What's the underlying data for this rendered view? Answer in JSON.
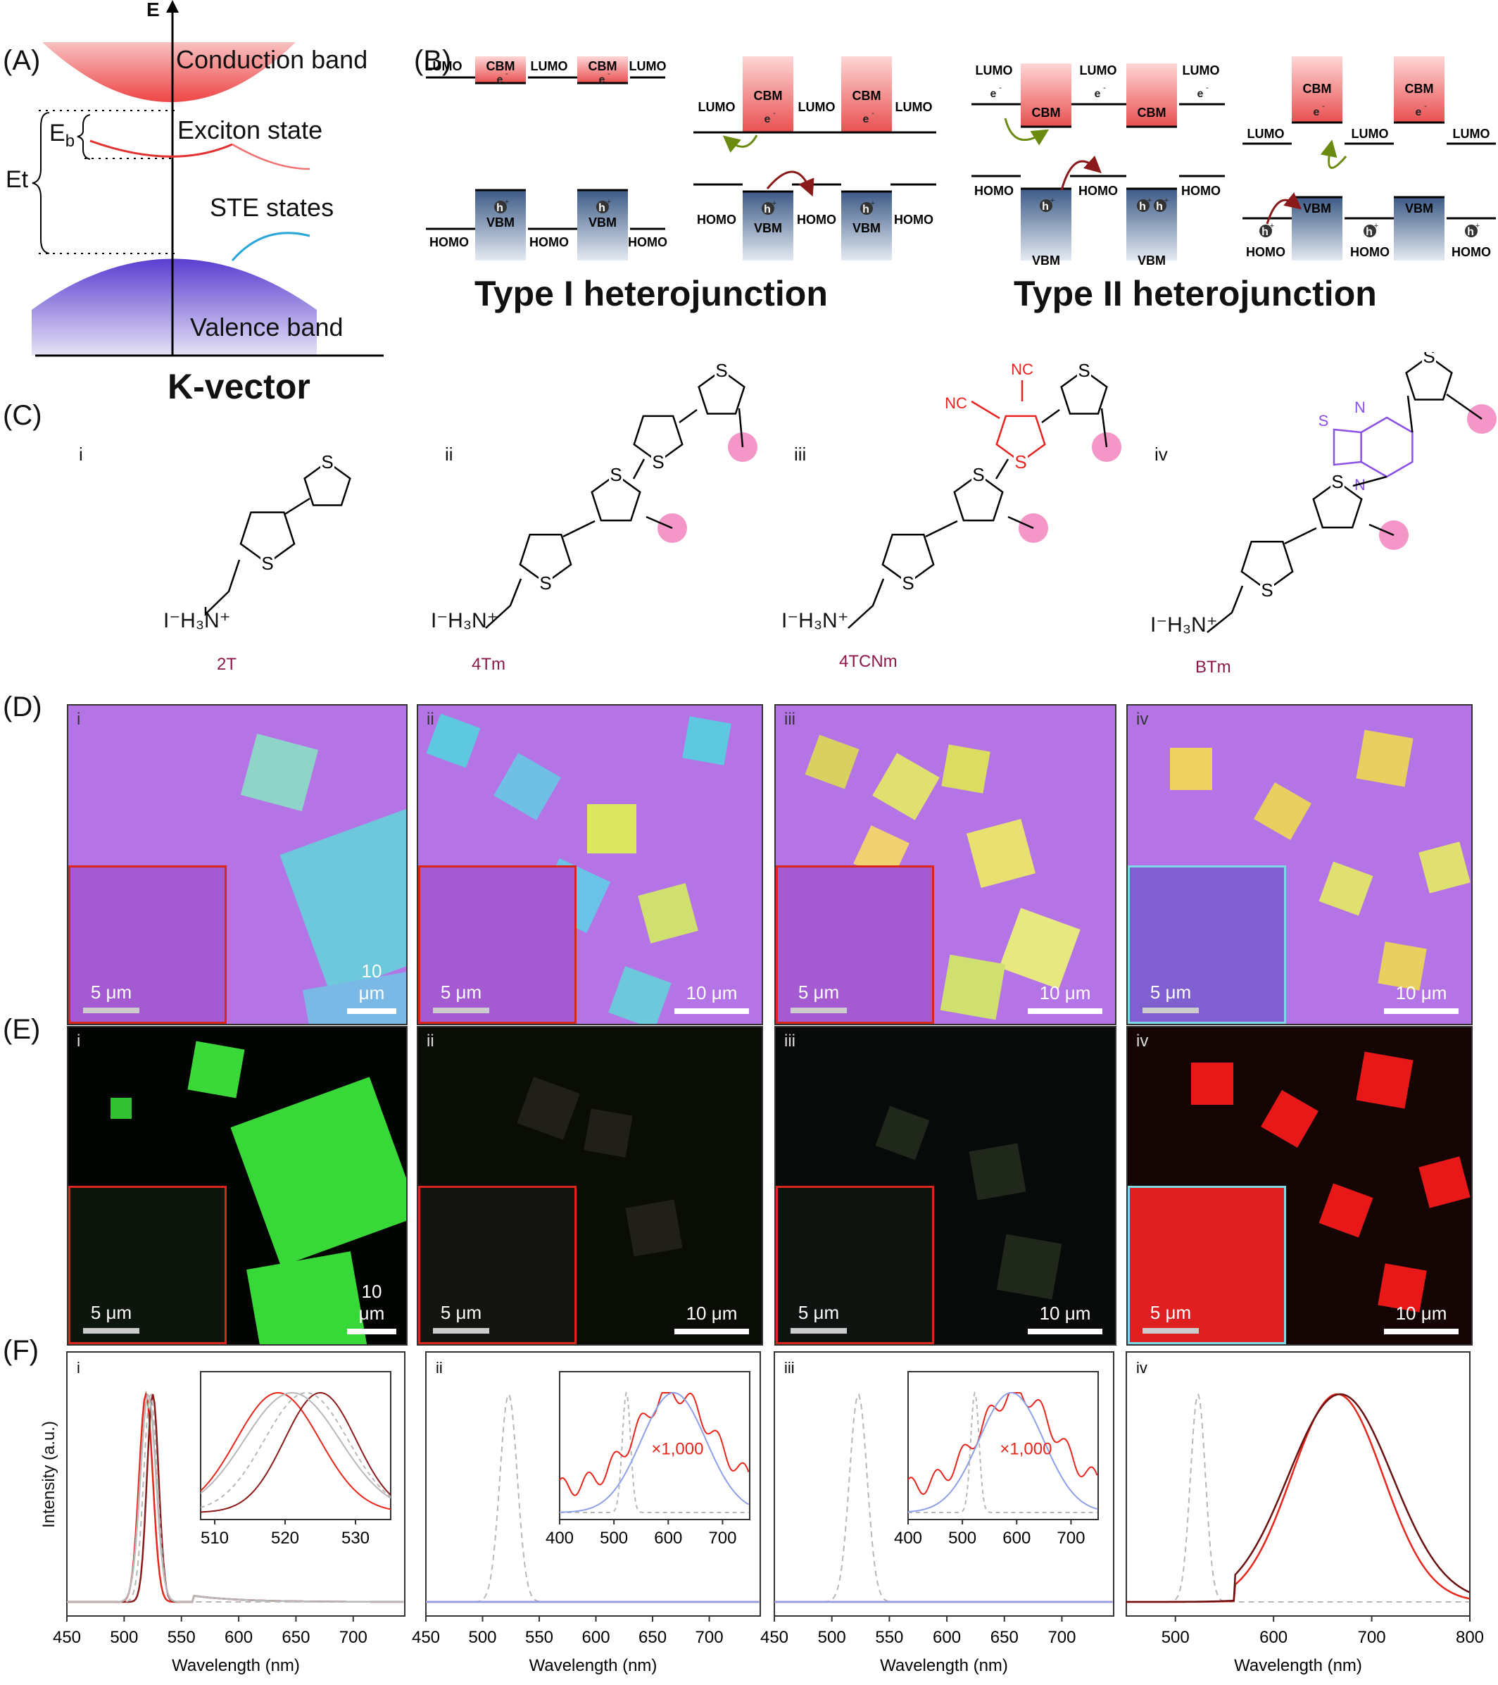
{
  "panelA": {
    "label": "(A)",
    "axis_e": "E",
    "conduction_band": "Conduction band",
    "exciton_state": "Exciton state",
    "ste_states": "STE states",
    "valence_band": "Valence band",
    "eb": "E",
    "eb_sub": "b",
    "et": "Et",
    "kvector": "K-vector"
  },
  "panelB": {
    "label": "(B)",
    "type1_title": "Type I heterojunction",
    "type2_title": "Type II heterojunction",
    "lumo": "LUMO",
    "homo": "HOMO",
    "cbm": "CBM",
    "vbm": "VBM",
    "electron": "e",
    "hole": "h",
    "charge_minus": "-",
    "charge_plus": "+"
  },
  "panelC": {
    "label": "(C)",
    "molecules": [
      {
        "roman": "i",
        "name": "2T"
      },
      {
        "roman": "ii",
        "name": "4Tm"
      },
      {
        "roman": "iii",
        "name": "4TCNm"
      },
      {
        "roman": "iv",
        "name": "BTm"
      }
    ],
    "ammonium": "I⁻H₃N⁺",
    "sulfur": "S",
    "nitrile": "NC",
    "nitrogen": "N"
  },
  "panelD": {
    "label": "(D)",
    "images": [
      {
        "roman": "i",
        "main_scale": "10 μm",
        "inset_scale": "5 μm"
      },
      {
        "roman": "ii",
        "main_scale": "10 μm",
        "inset_scale": "5 μm"
      },
      {
        "roman": "iii",
        "main_scale": "10 μm",
        "inset_scale": "5 μm"
      },
      {
        "roman": "iv",
        "main_scale": "10 μm",
        "inset_scale": "5 μm"
      }
    ]
  },
  "panelE": {
    "label": "(E)",
    "images": [
      {
        "roman": "i",
        "main_scale": "10 μm",
        "inset_scale": "5 μm"
      },
      {
        "roman": "ii",
        "main_scale": "10 μm",
        "inset_scale": "5 μm"
      },
      {
        "roman": "iii",
        "main_scale": "10 μm",
        "inset_scale": "5 μm"
      },
      {
        "roman": "iv",
        "main_scale": "10 μm",
        "inset_scale": "5 μm"
      }
    ]
  },
  "panelF": {
    "label": "(F)",
    "ylabel": "Intensity (a.u.)",
    "xlabel": "Wavelength (nm)",
    "multiplier": "×1,000"
  },
  "colors": {
    "conduction": "#ef5a5a",
    "valence": "#6a4fd6",
    "cbm": "#e04848",
    "vbm": "#4a6a90",
    "arrow_green": "#6a8a10",
    "arrow_red": "#8a1a1a",
    "molecule_red": "#e8221e",
    "molecule_purple": "#8b50e8",
    "methyl_pink": "#f497c8",
    "name_maroon": "#8b1a4a",
    "inset_red": "#d8261c",
    "inset_cyan": "#7fd8e6"
  },
  "chart_data": [
    {
      "type": "line",
      "panel": "i",
      "x_ticks": [
        450,
        500,
        550,
        600,
        650,
        700
      ],
      "xlim": [
        450,
        745
      ],
      "xlabel": "Wavelength (nm)",
      "ylabel": "Intensity (a.u.)",
      "series": [
        {
          "color": "#e8261c",
          "peak_nm": 519,
          "fwhm_nm": 14
        },
        {
          "color": "#8b1a1a",
          "peak_nm": 525,
          "fwhm_nm": 12
        },
        {
          "color": "#b8b8b8",
          "peak_nm": 521,
          "fwhm_nm": 16
        },
        {
          "color": "#b8b8b8",
          "dashed": true,
          "peak_nm": 523,
          "fwhm_nm": 14
        }
      ],
      "inset": {
        "x_ticks": [
          510,
          520,
          530
        ],
        "xlim": [
          508,
          535
        ]
      }
    },
    {
      "type": "line",
      "panel": "ii",
      "x_ticks": [
        450,
        500,
        550,
        600,
        650,
        700
      ],
      "xlim": [
        450,
        745
      ],
      "series": [
        {
          "color": "#b8b8b8",
          "dashed": true,
          "peak_nm": 523,
          "fwhm_nm": 18
        },
        {
          "color": "#e8261c",
          "peak_nm": 610,
          "note": "×1,000 in inset"
        },
        {
          "color": "#8da0e8",
          "peak_nm": 610
        }
      ],
      "inset": {
        "x_ticks": [
          400,
          500,
          600,
          700
        ],
        "xlim": [
          400,
          750
        ]
      }
    },
    {
      "type": "line",
      "panel": "iii",
      "x_ticks": [
        450,
        500,
        550,
        600,
        650,
        700
      ],
      "xlim": [
        450,
        745
      ],
      "series": [
        {
          "color": "#b8b8b8",
          "dashed": true,
          "peak_nm": 523,
          "fwhm_nm": 18
        },
        {
          "color": "#e8261c",
          "peak_nm": 600,
          "note": "×1,000 in inset"
        },
        {
          "color": "#8da0e8",
          "peak_nm": 590
        }
      ],
      "inset": {
        "x_ticks": [
          400,
          500,
          600,
          700
        ],
        "xlim": [
          400,
          750
        ]
      }
    },
    {
      "type": "line",
      "panel": "iv",
      "x_ticks": [
        500,
        600,
        700,
        800
      ],
      "xlim": [
        450,
        800
      ],
      "series": [
        {
          "color": "#b8b8b8",
          "dashed": true,
          "peak_nm": 523,
          "fwhm_nm": 18
        },
        {
          "color": "#e8261c",
          "peak_nm": 665,
          "fwhm_nm": 110
        },
        {
          "color": "#6a1010",
          "peak_nm": 668,
          "fwhm_nm": 125
        }
      ]
    }
  ]
}
